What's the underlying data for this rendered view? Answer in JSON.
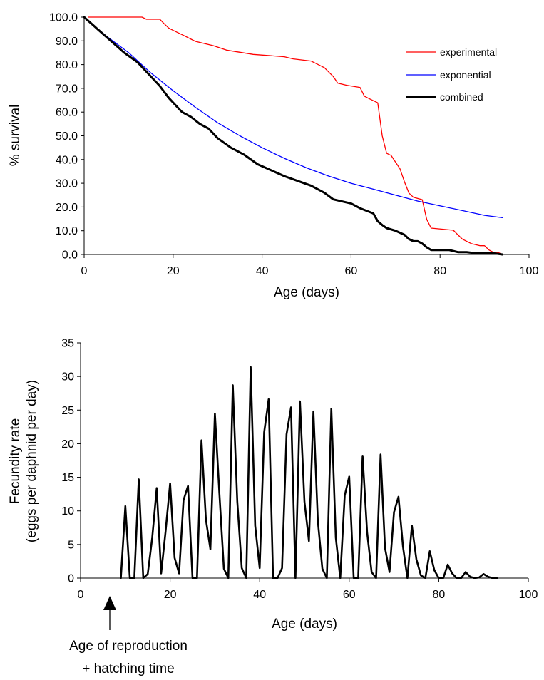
{
  "chart_data": [
    {
      "type": "line",
      "title": "",
      "xlabel": "Age (days)",
      "ylabel": "% survival",
      "xlim": [
        0,
        100
      ],
      "ylim": [
        0,
        100
      ],
      "xticks": [
        0,
        20,
        40,
        60,
        80,
        100
      ],
      "yticks": [
        0,
        10,
        20,
        30,
        40,
        50,
        60,
        70,
        80,
        90,
        100
      ],
      "xtick_labels": [
        "0",
        "20",
        "40",
        "60",
        "80",
        "100"
      ],
      "ytick_labels": [
        "0.0",
        "10.0",
        "20.0",
        "30.0",
        "40.0",
        "50.0",
        "60.0",
        "70.0",
        "80.0",
        "90.0",
        "100.0"
      ],
      "grid": false,
      "legend": "right",
      "series": [
        {
          "name": "experimental",
          "color": "#ff0000",
          "x": [
            1,
            13,
            14,
            17,
            18,
            19,
            20,
            21,
            22,
            25,
            29,
            32,
            35,
            38,
            45,
            47,
            51,
            54,
            56,
            57,
            59,
            62,
            63,
            64,
            66,
            67,
            68,
            69,
            70,
            71,
            72,
            73,
            74,
            76,
            77,
            78,
            83,
            84,
            85,
            87,
            89,
            90,
            91,
            92,
            93,
            94
          ],
          "y": [
            100,
            100,
            99.1,
            99.1,
            97.2,
            95.4,
            94.4,
            93.5,
            92.6,
            89.8,
            88,
            86.1,
            85.2,
            84.3,
            83.3,
            82.4,
            81.5,
            78.7,
            75,
            72.2,
            71.3,
            70.4,
            66.7,
            65.7,
            63.9,
            50,
            42.6,
            41.7,
            38.9,
            36.1,
            30.6,
            25.9,
            24.1,
            23.1,
            14.8,
            11.1,
            10.2,
            8.3,
            6.5,
            4.6,
            3.7,
            3.7,
            1.9,
            0.9,
            0.9,
            0
          ]
        },
        {
          "name": "exponential",
          "color": "#0000ff",
          "x": [
            0,
            5,
            10,
            15,
            20,
            25,
            30,
            35,
            40,
            45,
            50,
            55,
            60,
            65,
            70,
            75,
            80,
            85,
            90,
            94
          ],
          "y": [
            100,
            92,
            85,
            76.5,
            69,
            62,
            55.5,
            50,
            45,
            40.5,
            36.5,
            33,
            30,
            27.5,
            25,
            22.5,
            20.5,
            18.5,
            16.5,
            15.5
          ]
        },
        {
          "name": "combined",
          "color": "#000000",
          "x": [
            0,
            3,
            6,
            9,
            12,
            14,
            17,
            19,
            20,
            22,
            24,
            26,
            28,
            30,
            33,
            36,
            39,
            42,
            45,
            48,
            51,
            54,
            56,
            60,
            62,
            65,
            66,
            67,
            68,
            70,
            72,
            73,
            74,
            75,
            76,
            77,
            78,
            80,
            82,
            84,
            86,
            88,
            90,
            92,
            94
          ],
          "y": [
            100,
            95,
            90,
            85,
            81,
            77,
            71,
            66,
            64,
            60,
            58,
            55,
            53,
            49,
            45,
            42,
            38,
            35.5,
            33,
            31,
            29,
            26,
            23.2,
            21.5,
            19.5,
            17.3,
            14,
            12.4,
            11.1,
            10,
            8.3,
            6.5,
            5.6,
            5.6,
            4.6,
            3,
            1.9,
            1.9,
            1.9,
            1,
            1,
            0.5,
            0.5,
            0.5,
            0
          ]
        }
      ]
    },
    {
      "type": "line",
      "title": "",
      "xlabel": "Age (days)",
      "ylabel": "Fecundity rate (eggs per daphnid per day)",
      "ylabel_lines": [
        "Fecundity rate",
        "(eggs per daphnid per day)"
      ],
      "xlim": [
        0,
        100
      ],
      "ylim": [
        0,
        35
      ],
      "xticks": [
        0,
        20,
        40,
        60,
        80,
        100
      ],
      "yticks": [
        0,
        5,
        10,
        15,
        20,
        25,
        30,
        35
      ],
      "xtick_labels": [
        "0",
        "20",
        "40",
        "60",
        "80",
        "100"
      ],
      "ytick_labels": [
        "0",
        "5",
        "10",
        "15",
        "20",
        "25",
        "30",
        "35"
      ],
      "grid": false,
      "legend": "none",
      "annotation": {
        "lines": [
          "Age of reproduction",
          "+ hatching time"
        ],
        "x": 7
      },
      "series": [
        {
          "color": "#000000",
          "x": [
            9,
            10,
            11,
            12,
            13,
            14,
            15,
            16,
            17,
            18,
            19,
            20,
            21,
            22,
            23,
            24,
            25,
            26,
            27,
            28,
            29,
            30,
            31,
            32,
            33,
            34,
            35,
            36,
            37,
            38,
            39,
            40,
            41,
            42,
            43,
            44,
            45,
            46,
            47,
            48,
            49,
            50,
            51,
            52,
            53,
            54,
            55,
            56,
            57,
            58,
            59,
            60,
            61,
            62,
            63,
            64,
            65,
            66,
            67,
            68,
            69,
            70,
            71,
            72,
            73,
            74,
            75,
            76,
            77,
            78,
            79,
            80,
            81,
            82,
            83,
            84,
            85,
            86,
            87,
            88,
            89,
            90,
            91,
            92,
            93
          ],
          "y": [
            0,
            10.7,
            0,
            0,
            14.7,
            0,
            0.6,
            6,
            13.4,
            0.7,
            7,
            14.1,
            3,
            0.7,
            11.6,
            13.7,
            0,
            0,
            20.5,
            8.7,
            4.3,
            24.5,
            12.6,
            1.4,
            0,
            28.7,
            11.4,
            1.5,
            0,
            31.4,
            7.8,
            1.5,
            21.7,
            26.6,
            0,
            0,
            1.5,
            21.4,
            25.4,
            0,
            26.3,
            11.4,
            5.5,
            24.8,
            8.5,
            1.4,
            0,
            25.2,
            6,
            0,
            12.3,
            15.1,
            0,
            0,
            18.1,
            6.8,
            0.9,
            0,
            18.4,
            4.5,
            0.9,
            9.8,
            12.1,
            4.7,
            0,
            7.8,
            2.8,
            0.4,
            0,
            4,
            1.2,
            0,
            0,
            2,
            0.7,
            0,
            0,
            0.9,
            0.2,
            0,
            0.1,
            0.6,
            0.2,
            0,
            0
          ]
        }
      ]
    }
  ]
}
